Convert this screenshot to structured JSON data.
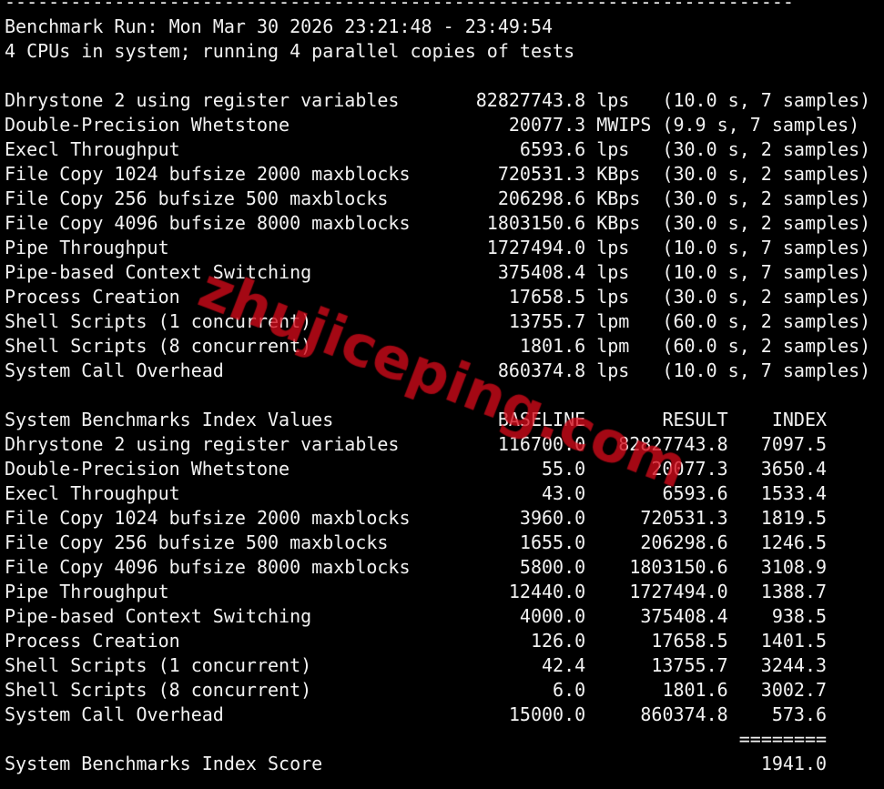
{
  "header": {
    "rule": "------------------------------------------------------------------------",
    "run": "Benchmark Run: Mon Mar 30 2026 23:21:48 - 23:49:54",
    "cpus": "4 CPUs in system; running 4 parallel copies of tests"
  },
  "tests": [
    {
      "name": "Dhrystone 2 using register variables",
      "value": "82827743.8",
      "unit": "lps",
      "details": "(10.0 s, 7 samples)"
    },
    {
      "name": "Double-Precision Whetstone",
      "value": "20077.3",
      "unit": "MWIPS",
      "details": "(9.9 s, 7 samples)"
    },
    {
      "name": "Execl Throughput",
      "value": "6593.6",
      "unit": "lps",
      "details": "(30.0 s, 2 samples)"
    },
    {
      "name": "File Copy 1024 bufsize 2000 maxblocks",
      "value": "720531.3",
      "unit": "KBps",
      "details": "(30.0 s, 2 samples)"
    },
    {
      "name": "File Copy 256 bufsize 500 maxblocks",
      "value": "206298.6",
      "unit": "KBps",
      "details": "(30.0 s, 2 samples)"
    },
    {
      "name": "File Copy 4096 bufsize 8000 maxblocks",
      "value": "1803150.6",
      "unit": "KBps",
      "details": "(30.0 s, 2 samples)"
    },
    {
      "name": "Pipe Throughput",
      "value": "1727494.0",
      "unit": "lps",
      "details": "(10.0 s, 7 samples)"
    },
    {
      "name": "Pipe-based Context Switching",
      "value": "375408.4",
      "unit": "lps",
      "details": "(10.0 s, 7 samples)"
    },
    {
      "name": "Process Creation",
      "value": "17658.5",
      "unit": "lps",
      "details": "(30.0 s, 2 samples)"
    },
    {
      "name": "Shell Scripts (1 concurrent)",
      "value": "13755.7",
      "unit": "lpm",
      "details": "(60.0 s, 2 samples)"
    },
    {
      "name": "Shell Scripts (8 concurrent)",
      "value": "1801.6",
      "unit": "lpm",
      "details": "(60.0 s, 2 samples)"
    },
    {
      "name": "System Call Overhead",
      "value": "860374.8",
      "unit": "lps",
      "details": "(10.0 s, 7 samples)"
    }
  ],
  "index": {
    "title": "System Benchmarks Index Values",
    "columns": [
      "BASELINE",
      "RESULT",
      "INDEX"
    ],
    "rows": [
      [
        "Dhrystone 2 using register variables",
        "116700.0",
        "82827743.8",
        "7097.5"
      ],
      [
        "Double-Precision Whetstone",
        "55.0",
        "20077.3",
        "3650.4"
      ],
      [
        "Execl Throughput",
        "43.0",
        "6593.6",
        "1533.4"
      ],
      [
        "File Copy 1024 bufsize 2000 maxblocks",
        "3960.0",
        "720531.3",
        "1819.5"
      ],
      [
        "File Copy 256 bufsize 500 maxblocks",
        "1655.0",
        "206298.6",
        "1246.5"
      ],
      [
        "File Copy 4096 bufsize 8000 maxblocks",
        "5800.0",
        "1803150.6",
        "3108.9"
      ],
      [
        "Pipe Throughput",
        "12440.0",
        "1727494.0",
        "1388.7"
      ],
      [
        "Pipe-based Context Switching",
        "4000.0",
        "375408.4",
        "938.5"
      ],
      [
        "Process Creation",
        "126.0",
        "17658.5",
        "1401.5"
      ],
      [
        "Shell Scripts (1 concurrent)",
        "42.4",
        "13755.7",
        "3244.3"
      ],
      [
        "Shell Scripts (8 concurrent)",
        "6.0",
        "1801.6",
        "3002.7"
      ],
      [
        "System Call Overhead",
        "15000.0",
        "860374.8",
        "573.6"
      ]
    ],
    "separator": "========",
    "score_label": "System Benchmarks Index Score",
    "score": "1941.0"
  },
  "watermark": "zhujiceping.com",
  "colors": {
    "background": "#000000",
    "text": "#f2f2f2",
    "watermark": "#d20a19"
  }
}
